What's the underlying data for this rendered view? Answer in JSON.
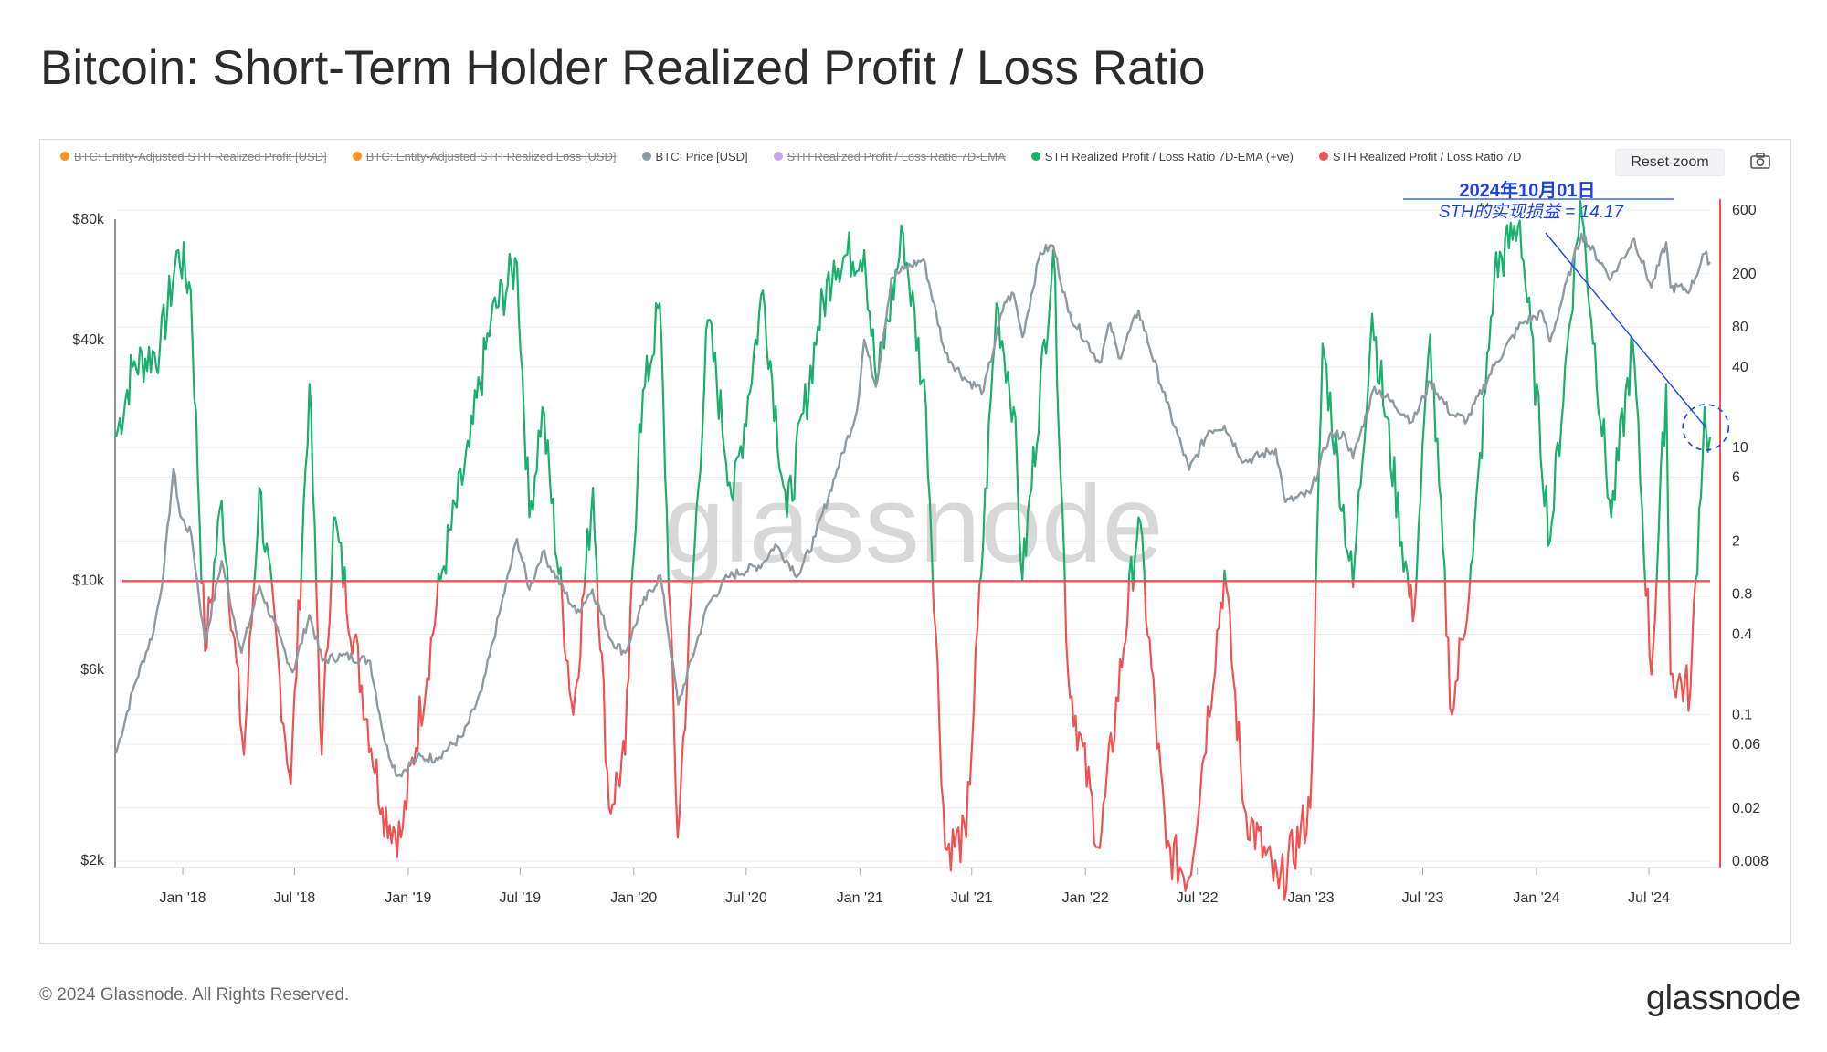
{
  "title": "Bitcoin: Short-Term Holder Realized Profit / Loss Ratio",
  "legend": [
    {
      "label": "BTC: Entity-Adjusted STH Realized Profit [USD]",
      "color": "#f7931a",
      "enabled": false
    },
    {
      "label": "BTC: Entity-Adjusted STH Realized Loss [USD]",
      "color": "#f7931a",
      "enabled": false
    },
    {
      "label": "BTC: Price [USD]",
      "color": "#8e9aa1",
      "enabled": true
    },
    {
      "label": "STH Realized Profit / Loss Ratio 7D-EMA",
      "color": "#c9a7e6",
      "enabled": false
    },
    {
      "label": "STH Realized Profit / Loss Ratio 7D-EMA (+ve)",
      "color": "#1aaf6c",
      "enabled": true
    },
    {
      "label": "STH Realized Profit / Loss Ratio 7D",
      "color": "#f05252",
      "enabled": true
    }
  ],
  "controls": {
    "reset_zoom": "Reset zoom",
    "camera_icon": "camera-icon"
  },
  "watermark": "glassnode",
  "annotation": {
    "date": "2024年10月01日",
    "text": "STH的实现损益 = 14.17",
    "color": "#1a44e6"
  },
  "footer": {
    "copyright": "© 2024 Glassnode. All Rights Reserved.",
    "brand": "glassnode"
  },
  "colors": {
    "price": "#8e9aa1",
    "profit": "#1aaf6c",
    "loss": "#f05252",
    "baseline": "#f05252",
    "annotation": "#1a44e6"
  },
  "chart_data": {
    "type": "line",
    "x_ticks": [
      "Jan '18",
      "Jul '18",
      "Jan '19",
      "Jul '19",
      "Jan '20",
      "Jul '20",
      "Jan '21",
      "Jul '21",
      "Jan '22",
      "Jul '22",
      "Jan '23",
      "Jul '23",
      "Jan '24",
      "Jul '24"
    ],
    "x_range": [
      "2017-09-15",
      "2024-10-08"
    ],
    "y_left": {
      "scale": "log",
      "ticks": [
        "$80k",
        "$40k",
        "$10k",
        "$6k",
        "$2k"
      ],
      "tick_values": [
        80000,
        40000,
        10000,
        6000,
        2000
      ]
    },
    "y_right": {
      "scale": "log",
      "ticks": [
        "600",
        "200",
        "80",
        "40",
        "10",
        "6",
        "2",
        "0.8",
        "0.4",
        "0.1",
        "0.06",
        "0.02",
        "0.008"
      ],
      "tick_values": [
        600,
        200,
        80,
        40,
        10,
        6,
        2,
        0.8,
        0.4,
        0.1,
        0.06,
        0.02,
        0.008
      ],
      "baseline": 1
    },
    "grid": true,
    "legend_position": "top",
    "series": [
      {
        "name": "BTC: Price [USD]",
        "axis": "left",
        "points": [
          [
            "2017-09-15",
            3700
          ],
          [
            "2017-10-15",
            5500
          ],
          [
            "2017-11-15",
            7500
          ],
          [
            "2017-12-01",
            10500
          ],
          [
            "2017-12-17",
            19000
          ],
          [
            "2017-12-28",
            14500
          ],
          [
            "2018-01-15",
            13000
          ],
          [
            "2018-02-06",
            7000
          ],
          [
            "2018-03-05",
            11200
          ],
          [
            "2018-04-06",
            6600
          ],
          [
            "2018-05-05",
            9700
          ],
          [
            "2018-06-28",
            5900
          ],
          [
            "2018-07-25",
            8200
          ],
          [
            "2018-08-15",
            6300
          ],
          [
            "2018-09-15",
            6500
          ],
          [
            "2018-10-31",
            6300
          ],
          [
            "2018-11-25",
            3900
          ],
          [
            "2018-12-15",
            3250
          ],
          [
            "2019-01-15",
            3600
          ],
          [
            "2019-02-15",
            3600
          ],
          [
            "2019-03-31",
            4100
          ],
          [
            "2019-04-30",
            5300
          ],
          [
            "2019-05-31",
            8600
          ],
          [
            "2019-06-26",
            12700
          ],
          [
            "2019-07-16",
            9500
          ],
          [
            "2019-08-06",
            11800
          ],
          [
            "2019-09-30",
            8300
          ],
          [
            "2019-10-26",
            9500
          ],
          [
            "2019-11-25",
            7100
          ],
          [
            "2019-12-18",
            6600
          ],
          [
            "2020-01-15",
            8700
          ],
          [
            "2020-02-13",
            10300
          ],
          [
            "2020-03-13",
            4900
          ],
          [
            "2020-04-30",
            8700
          ],
          [
            "2020-06-01",
            10200
          ],
          [
            "2020-07-27",
            11000
          ],
          [
            "2020-08-17",
            12300
          ],
          [
            "2020-09-23",
            10300
          ],
          [
            "2020-10-21",
            12900
          ],
          [
            "2020-11-25",
            18900
          ],
          [
            "2020-12-27",
            26500
          ],
          [
            "2021-01-08",
            40000
          ],
          [
            "2021-01-27",
            30500
          ],
          [
            "2021-02-21",
            57000
          ],
          [
            "2021-03-13",
            60000
          ],
          [
            "2021-04-14",
            63500
          ],
          [
            "2021-05-19",
            37000
          ],
          [
            "2021-06-22",
            31700
          ],
          [
            "2021-07-20",
            29800
          ],
          [
            "2021-08-23",
            49500
          ],
          [
            "2021-09-07",
            52000
          ],
          [
            "2021-09-21",
            40600
          ],
          [
            "2021-10-20",
            66000
          ],
          [
            "2021-11-10",
            68700
          ],
          [
            "2021-12-04",
            47000
          ],
          [
            "2022-01-24",
            35000
          ],
          [
            "2022-02-10",
            44000
          ],
          [
            "2022-02-24",
            36000
          ],
          [
            "2022-03-28",
            47300
          ],
          [
            "2022-05-12",
            28000
          ],
          [
            "2022-06-18",
            18900
          ],
          [
            "2022-07-20",
            23700
          ],
          [
            "2022-08-14",
            24400
          ],
          [
            "2022-09-15",
            19800
          ],
          [
            "2022-11-05",
            21300
          ],
          [
            "2022-11-21",
            15700
          ],
          [
            "2022-12-31",
            16500
          ],
          [
            "2023-01-31",
            23100
          ],
          [
            "2023-02-25",
            23100
          ],
          [
            "2023-03-10",
            20200
          ],
          [
            "2023-04-14",
            30500
          ],
          [
            "2023-06-15",
            25000
          ],
          [
            "2023-07-13",
            31400
          ],
          [
            "2023-08-17",
            26000
          ],
          [
            "2023-09-11",
            25200
          ],
          [
            "2023-10-25",
            34500
          ],
          [
            "2023-12-08",
            44000
          ],
          [
            "2024-01-11",
            46500
          ],
          [
            "2024-01-23",
            39500
          ],
          [
            "2024-02-28",
            62000
          ],
          [
            "2024-03-14",
            73500
          ],
          [
            "2024-05-01",
            57000
          ],
          [
            "2024-06-07",
            71500
          ],
          [
            "2024-07-05",
            54000
          ],
          [
            "2024-07-29",
            70000
          ],
          [
            "2024-08-05",
            54000
          ],
          [
            "2024-09-06",
            53500
          ],
          [
            "2024-09-29",
            65500
          ],
          [
            "2024-10-08",
            62500
          ]
        ]
      },
      {
        "name": "STH Realized Profit / Loss Ratio 7D-EMA (+ve)",
        "axis": "right",
        "points": [
          [
            "2017-09-15",
            12
          ],
          [
            "2017-10-12",
            40
          ],
          [
            "2017-11-25",
            55
          ],
          [
            "2017-12-25",
            300
          ],
          [
            "2018-01-14",
            150
          ],
          [
            "2018-02-06",
            0.3
          ],
          [
            "2018-03-05",
            4
          ],
          [
            "2018-04-10",
            0.05
          ],
          [
            "2018-05-05",
            5
          ],
          [
            "2018-06-25",
            0.03
          ],
          [
            "2018-07-25",
            30
          ],
          [
            "2018-08-14",
            0.05
          ],
          [
            "2018-09-02",
            3
          ],
          [
            "2018-11-20",
            0.02
          ],
          [
            "2018-12-20",
            0.012
          ],
          [
            "2019-02-25",
            1.2
          ],
          [
            "2019-04-10",
            10
          ],
          [
            "2019-05-15",
            90
          ],
          [
            "2019-06-26",
            240
          ],
          [
            "2019-07-16",
            3
          ],
          [
            "2019-08-06",
            20
          ],
          [
            "2019-09-25",
            0.1
          ],
          [
            "2019-10-27",
            5
          ],
          [
            "2019-11-22",
            0.02
          ],
          [
            "2019-12-18",
            0.05
          ],
          [
            "2020-01-10",
            15
          ],
          [
            "2020-02-12",
            120
          ],
          [
            "2020-03-12",
            0.012
          ],
          [
            "2020-04-30",
            90
          ],
          [
            "2020-06-10",
            4
          ],
          [
            "2020-07-28",
            150
          ],
          [
            "2020-09-05",
            3
          ],
          [
            "2020-10-25",
            80
          ],
          [
            "2020-11-20",
            250
          ],
          [
            "2021-01-08",
            300
          ],
          [
            "2021-01-28",
            30
          ],
          [
            "2021-03-12",
            400
          ],
          [
            "2021-04-18",
            20
          ],
          [
            "2021-05-19",
            0.01
          ],
          [
            "2021-06-22",
            0.012
          ],
          [
            "2021-08-10",
            120
          ],
          [
            "2021-09-07",
            20
          ],
          [
            "2021-09-21",
            1
          ],
          [
            "2021-11-10",
            300
          ],
          [
            "2021-12-04",
            0.2
          ],
          [
            "2022-01-24",
            0.01
          ],
          [
            "2022-03-28",
            3
          ],
          [
            "2022-05-12",
            0.01
          ],
          [
            "2022-06-18",
            0.006
          ],
          [
            "2022-08-14",
            1.2
          ],
          [
            "2022-09-15",
            0.02
          ],
          [
            "2022-11-10",
            0.005
          ],
          [
            "2022-12-31",
            0.02
          ],
          [
            "2023-01-20",
            60
          ],
          [
            "2023-03-10",
            0.9
          ],
          [
            "2023-04-10",
            100
          ],
          [
            "2023-06-15",
            0.5
          ],
          [
            "2023-07-13",
            70
          ],
          [
            "2023-08-17",
            0.1
          ],
          [
            "2023-09-20",
            1.5
          ],
          [
            "2023-10-25",
            200
          ],
          [
            "2023-12-05",
            500
          ],
          [
            "2024-01-23",
            2
          ],
          [
            "2024-03-12",
            700
          ],
          [
            "2024-05-01",
            3
          ],
          [
            "2024-06-05",
            60
          ],
          [
            "2024-07-05",
            0.2
          ],
          [
            "2024-07-29",
            30
          ],
          [
            "2024-08-05",
            0.2
          ],
          [
            "2024-09-06",
            0.15
          ],
          [
            "2024-09-29",
            20
          ],
          [
            "2024-10-01",
            14.17
          ],
          [
            "2024-10-08",
            12
          ]
        ]
      }
    ],
    "annotation": {
      "date": "2024-10-01",
      "value": 14.17,
      "label": "STH的实现损益 = 14.17"
    }
  }
}
